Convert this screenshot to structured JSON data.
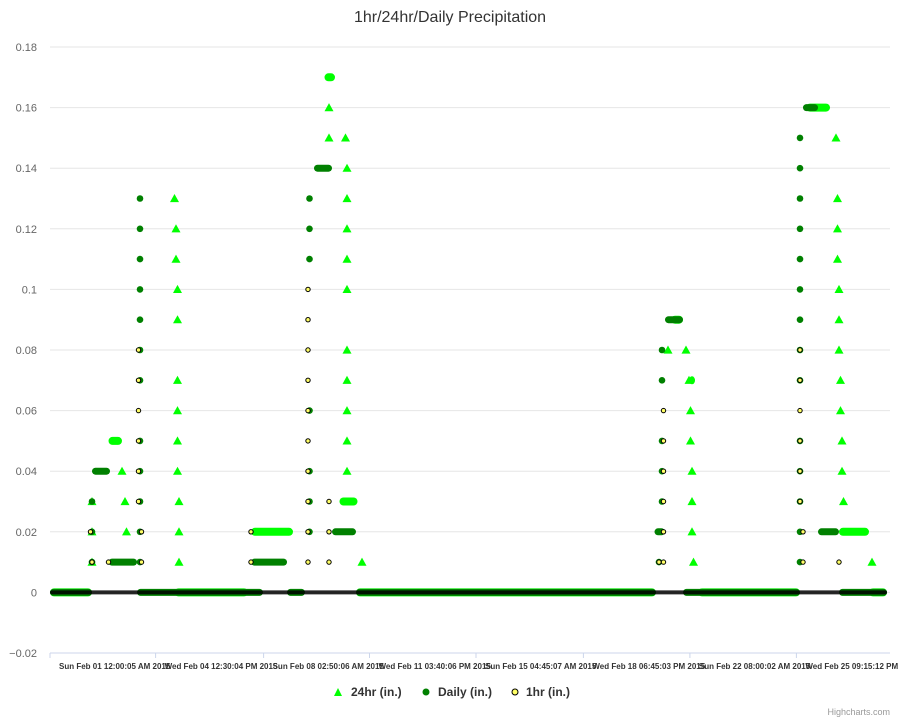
{
  "chart_data": {
    "type": "scatter",
    "title": "1hr/24hr/Daily Precipitation",
    "xlabel": "",
    "ylabel": "",
    "ylim": [
      -0.02,
      0.18
    ],
    "yticks": [
      "−0.02",
      "0",
      "0.02",
      "0.04",
      "0.06",
      "0.08",
      "0.1",
      "0.12",
      "0.14",
      "0.16",
      "0.18"
    ],
    "xlim": [
      0,
      28
    ],
    "xticks": [
      {
        "x": 0,
        "label": "Sun Feb 01 12:00:05 AM 2015"
      },
      {
        "x": 3.52,
        "label": "Wed Feb 04 12:30:04 PM 2015"
      },
      {
        "x": 7.12,
        "label": "Sun Feb 08 02:50:06 AM 2015"
      },
      {
        "x": 10.65,
        "label": "Wed Feb 11 03:40:06 PM 2015"
      },
      {
        "x": 14.2,
        "label": "Sun Feb 15 04:45:07 AM 2015"
      },
      {
        "x": 17.78,
        "label": "Wed Feb 18 06:45:03 PM 2015"
      },
      {
        "x": 21.33,
        "label": "Sun Feb 22 08:00:02 AM 2015"
      },
      {
        "x": 24.88,
        "label": "Wed Feb 25 09:15:12 PM 2015"
      }
    ],
    "grid": true,
    "legend": "bottom-center",
    "series": [
      {
        "name": "24hr (in.)",
        "marker": "triangle",
        "color": "#00ff00",
        "segments": [
          [
            0,
            1.4,
            0
          ],
          [
            1.95,
            2.4,
            0.05
          ],
          [
            4.15,
            6.6,
            0
          ],
          [
            6.7,
            8.1,
            0.02
          ],
          [
            9.15,
            9.5,
            0.17
          ],
          [
            9.65,
            10.25,
            0.03
          ],
          [
            10.2,
            20.2,
            0
          ],
          [
            20.7,
            21.1,
            0.09
          ],
          [
            21.3,
            21.5,
            0.07
          ],
          [
            21.6,
            25.0,
            0
          ],
          [
            25.2,
            26.0,
            0.16
          ],
          [
            26.3,
            27.3,
            0.02
          ],
          [
            27.3,
            27.9,
            0
          ]
        ],
        "points": [
          [
            1.4,
            0.03
          ],
          [
            1.4,
            0.02
          ],
          [
            1.4,
            0.01
          ],
          [
            2.4,
            0.04
          ],
          [
            2.5,
            0.03
          ],
          [
            2.55,
            0.02
          ],
          [
            4.15,
            0.13
          ],
          [
            4.2,
            0.12
          ],
          [
            4.2,
            0.11
          ],
          [
            4.25,
            0.1
          ],
          [
            4.25,
            0.09
          ],
          [
            4.25,
            0.07
          ],
          [
            4.25,
            0.06
          ],
          [
            4.25,
            0.05
          ],
          [
            4.25,
            0.04
          ],
          [
            4.3,
            0.03
          ],
          [
            4.3,
            0.02
          ],
          [
            4.3,
            0.01
          ],
          [
            9.3,
            0.16
          ],
          [
            9.3,
            0.15
          ],
          [
            9.85,
            0.15
          ],
          [
            9.9,
            0.14
          ],
          [
            9.9,
            0.13
          ],
          [
            9.9,
            0.12
          ],
          [
            9.9,
            0.11
          ],
          [
            9.9,
            0.1
          ],
          [
            9.9,
            0.08
          ],
          [
            9.9,
            0.07
          ],
          [
            9.9,
            0.06
          ],
          [
            9.9,
            0.05
          ],
          [
            9.9,
            0.04
          ],
          [
            10.4,
            0.01
          ],
          [
            20.6,
            0.08
          ],
          [
            21.2,
            0.08
          ],
          [
            21.3,
            0.07
          ],
          [
            21.35,
            0.06
          ],
          [
            21.35,
            0.05
          ],
          [
            21.4,
            0.04
          ],
          [
            21.4,
            0.03
          ],
          [
            21.4,
            0.02
          ],
          [
            21.45,
            0.01
          ],
          [
            26.2,
            0.15
          ],
          [
            26.25,
            0.13
          ],
          [
            26.25,
            0.12
          ],
          [
            26.25,
            0.11
          ],
          [
            26.3,
            0.1
          ],
          [
            26.3,
            0.09
          ],
          [
            26.3,
            0.08
          ],
          [
            26.35,
            0.07
          ],
          [
            26.35,
            0.06
          ],
          [
            26.4,
            0.05
          ],
          [
            26.4,
            0.04
          ],
          [
            26.45,
            0.03
          ],
          [
            27.4,
            0.01
          ]
        ]
      },
      {
        "name": "Daily (in.)",
        "marker": "circle",
        "color": "#008000",
        "segments": [
          [
            0,
            1.4,
            0
          ],
          [
            1.4,
            2.0,
            0.04
          ],
          [
            1.95,
            2.9,
            0.01
          ],
          [
            2.9,
            7.1,
            0
          ],
          [
            6.7,
            7.9,
            0.01
          ],
          [
            7.9,
            8.5,
            0
          ],
          [
            8.8,
            9.4,
            0.14
          ],
          [
            9.4,
            10.2,
            0.02
          ],
          [
            10.2,
            20.2,
            0
          ],
          [
            20.15,
            20.5,
            0.02
          ],
          [
            20.5,
            21.1,
            0.09
          ],
          [
            21.1,
            25.0,
            0
          ],
          [
            25.1,
            25.6,
            0.16
          ],
          [
            25.6,
            26.3,
            0.02
          ],
          [
            26.3,
            27.9,
            0
          ]
        ],
        "points": [
          [
            1.4,
            0.03
          ],
          [
            1.4,
            0.02
          ],
          [
            1.4,
            0.01
          ],
          [
            3.0,
            0.13
          ],
          [
            3.0,
            0.12
          ],
          [
            3.0,
            0.11
          ],
          [
            3.0,
            0.1
          ],
          [
            3.0,
            0.09
          ],
          [
            3.0,
            0.08
          ],
          [
            3.0,
            0.07
          ],
          [
            3.0,
            0.05
          ],
          [
            3.0,
            0.04
          ],
          [
            3.0,
            0.03
          ],
          [
            3.0,
            0.02
          ],
          [
            3.0,
            0.01
          ],
          [
            8.65,
            0.13
          ],
          [
            8.65,
            0.12
          ],
          [
            8.65,
            0.11
          ],
          [
            8.65,
            0.06
          ],
          [
            8.65,
            0.04
          ],
          [
            8.65,
            0.03
          ],
          [
            8.65,
            0.02
          ],
          [
            20.4,
            0.08
          ],
          [
            20.4,
            0.07
          ],
          [
            20.4,
            0.05
          ],
          [
            20.4,
            0.04
          ],
          [
            20.4,
            0.03
          ],
          [
            20.3,
            0.01
          ],
          [
            25.0,
            0.15
          ],
          [
            25.0,
            0.14
          ],
          [
            25.0,
            0.13
          ],
          [
            25.0,
            0.12
          ],
          [
            25.0,
            0.11
          ],
          [
            25.0,
            0.1
          ],
          [
            25.0,
            0.09
          ],
          [
            25.0,
            0.08
          ],
          [
            25.0,
            0.07
          ],
          [
            25.0,
            0.05
          ],
          [
            25.0,
            0.04
          ],
          [
            25.0,
            0.03
          ],
          [
            25.0,
            0.02
          ],
          [
            25.0,
            0.01
          ]
        ]
      },
      {
        "name": "1hr (in.)",
        "marker": "circle",
        "color": "#ffff66",
        "segments": [
          [
            0,
            27.9,
            0
          ]
        ],
        "points": [
          [
            1.35,
            0.02
          ],
          [
            1.4,
            0.01
          ],
          [
            1.95,
            0.01
          ],
          [
            2.95,
            0.08
          ],
          [
            2.95,
            0.07
          ],
          [
            2.95,
            0.06
          ],
          [
            2.95,
            0.05
          ],
          [
            2.95,
            0.04
          ],
          [
            2.95,
            0.03
          ],
          [
            3.05,
            0.02
          ],
          [
            3.05,
            0.01
          ],
          [
            6.7,
            0.02
          ],
          [
            6.7,
            0.01
          ],
          [
            8.6,
            0.1
          ],
          [
            8.6,
            0.09
          ],
          [
            8.6,
            0.08
          ],
          [
            8.6,
            0.07
          ],
          [
            8.6,
            0.06
          ],
          [
            8.6,
            0.05
          ],
          [
            8.6,
            0.04
          ],
          [
            8.6,
            0.03
          ],
          [
            8.6,
            0.02
          ],
          [
            8.6,
            0.01
          ],
          [
            9.3,
            0.03
          ],
          [
            9.3,
            0.02
          ],
          [
            9.3,
            0.01
          ],
          [
            20.3,
            0.01
          ],
          [
            20.45,
            0.06
          ],
          [
            20.45,
            0.05
          ],
          [
            20.45,
            0.04
          ],
          [
            20.45,
            0.03
          ],
          [
            20.45,
            0.02
          ],
          [
            20.45,
            0.01
          ],
          [
            25.0,
            0.08
          ],
          [
            25.0,
            0.07
          ],
          [
            25.0,
            0.06
          ],
          [
            25.0,
            0.05
          ],
          [
            25.0,
            0.04
          ],
          [
            25.0,
            0.03
          ],
          [
            25.1,
            0.02
          ],
          [
            25.1,
            0.01
          ],
          [
            26.3,
            0.01
          ]
        ]
      }
    ]
  },
  "credits": "Highcharts.com"
}
